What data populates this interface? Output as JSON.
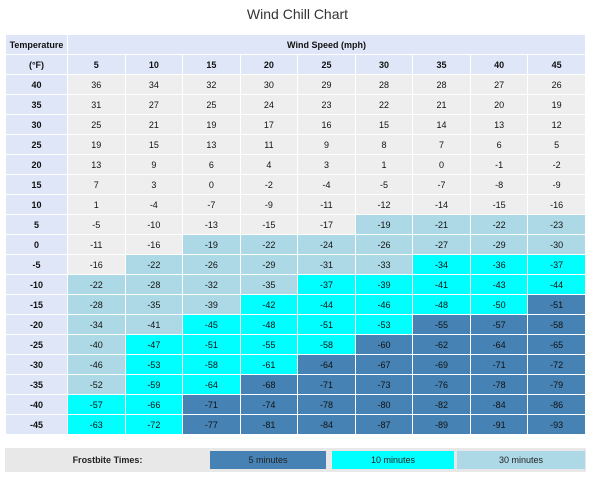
{
  "title": "Wind Chill Chart",
  "header": {
    "temp_label_1": "Temperature",
    "temp_label_2": "(°F)",
    "wind_label": "Wind Speed (mph)",
    "speeds": [
      "5",
      "10",
      "15",
      "20",
      "25",
      "30",
      "35",
      "40",
      "45"
    ]
  },
  "rows": [
    {
      "temp": "40",
      "values": [
        "36",
        "34",
        "32",
        "30",
        "29",
        "28",
        "28",
        "27",
        "26"
      ],
      "zones": [
        "none",
        "none",
        "none",
        "none",
        "none",
        "none",
        "none",
        "none",
        "none"
      ]
    },
    {
      "temp": "35",
      "values": [
        "31",
        "27",
        "25",
        "24",
        "23",
        "22",
        "21",
        "20",
        "19"
      ],
      "zones": [
        "none",
        "none",
        "none",
        "none",
        "none",
        "none",
        "none",
        "none",
        "none"
      ]
    },
    {
      "temp": "30",
      "values": [
        "25",
        "21",
        "19",
        "17",
        "16",
        "15",
        "14",
        "13",
        "12"
      ],
      "zones": [
        "none",
        "none",
        "none",
        "none",
        "none",
        "none",
        "none",
        "none",
        "none"
      ]
    },
    {
      "temp": "25",
      "values": [
        "19",
        "15",
        "13",
        "11",
        "9",
        "8",
        "7",
        "6",
        "5"
      ],
      "zones": [
        "none",
        "none",
        "none",
        "none",
        "none",
        "none",
        "none",
        "none",
        "none"
      ]
    },
    {
      "temp": "20",
      "values": [
        "13",
        "9",
        "6",
        "4",
        "3",
        "1",
        "0",
        "-1",
        "-2"
      ],
      "zones": [
        "none",
        "none",
        "none",
        "none",
        "none",
        "none",
        "none",
        "none",
        "none"
      ]
    },
    {
      "temp": "15",
      "values": [
        "7",
        "3",
        "0",
        "-2",
        "-4",
        "-5",
        "-7",
        "-8",
        "-9"
      ],
      "zones": [
        "none",
        "none",
        "none",
        "none",
        "none",
        "none",
        "none",
        "none",
        "none"
      ]
    },
    {
      "temp": "10",
      "values": [
        "1",
        "-4",
        "-7",
        "-9",
        "-11",
        "-12",
        "-14",
        "-15",
        "-16"
      ],
      "zones": [
        "none",
        "none",
        "none",
        "none",
        "none",
        "none",
        "none",
        "none",
        "none"
      ]
    },
    {
      "temp": "5",
      "values": [
        "-5",
        "-10",
        "-13",
        "-15",
        "-17",
        "-19",
        "-21",
        "-22",
        "-23"
      ],
      "zones": [
        "none",
        "none",
        "none",
        "none",
        "none",
        "30",
        "30",
        "30",
        "30"
      ]
    },
    {
      "temp": "0",
      "values": [
        "-11",
        "-16",
        "-19",
        "-22",
        "-24",
        "-26",
        "-27",
        "-29",
        "-30"
      ],
      "zones": [
        "none",
        "none",
        "30",
        "30",
        "30",
        "30",
        "30",
        "30",
        "30"
      ]
    },
    {
      "temp": "-5",
      "values": [
        "-16",
        "-22",
        "-26",
        "-29",
        "-31",
        "-33",
        "-34",
        "-36",
        "-37"
      ],
      "zones": [
        "none",
        "30",
        "30",
        "30",
        "30",
        "30",
        "10",
        "10",
        "10"
      ]
    },
    {
      "temp": "-10",
      "values": [
        "-22",
        "-28",
        "-32",
        "-35",
        "-37",
        "-39",
        "-41",
        "-43",
        "-44"
      ],
      "zones": [
        "30",
        "30",
        "30",
        "30",
        "10",
        "10",
        "10",
        "10",
        "10"
      ]
    },
    {
      "temp": "-15",
      "values": [
        "-28",
        "-35",
        "-39",
        "-42",
        "-44",
        "-46",
        "-48",
        "-50",
        "-51"
      ],
      "zones": [
        "30",
        "30",
        "30",
        "10",
        "10",
        "10",
        "10",
        "10",
        "5"
      ]
    },
    {
      "temp": "-20",
      "values": [
        "-34",
        "-41",
        "-45",
        "-48",
        "-51",
        "-53",
        "-55",
        "-57",
        "-58"
      ],
      "zones": [
        "30",
        "30",
        "10",
        "10",
        "10",
        "10",
        "5",
        "5",
        "5"
      ]
    },
    {
      "temp": "-25",
      "values": [
        "-40",
        "-47",
        "-51",
        "-55",
        "-58",
        "-60",
        "-62",
        "-64",
        "-65"
      ],
      "zones": [
        "30",
        "10",
        "10",
        "10",
        "10",
        "5",
        "5",
        "5",
        "5"
      ]
    },
    {
      "temp": "-30",
      "values": [
        "-46",
        "-53",
        "-58",
        "-61",
        "-64",
        "-67",
        "-69",
        "-71",
        "-72"
      ],
      "zones": [
        "30",
        "10",
        "10",
        "10",
        "5",
        "5",
        "5",
        "5",
        "5"
      ]
    },
    {
      "temp": "-35",
      "values": [
        "-52",
        "-59",
        "-64",
        "-68",
        "-71",
        "-73",
        "-76",
        "-78",
        "-79"
      ],
      "zones": [
        "30",
        "10",
        "10",
        "5",
        "5",
        "5",
        "5",
        "5",
        "5"
      ]
    },
    {
      "temp": "-40",
      "values": [
        "-57",
        "-66",
        "-71",
        "-74",
        "-78",
        "-80",
        "-82",
        "-84",
        "-86"
      ],
      "zones": [
        "10",
        "10",
        "5",
        "5",
        "5",
        "5",
        "5",
        "5",
        "5"
      ]
    },
    {
      "temp": "-45",
      "values": [
        "-63",
        "-72",
        "-77",
        "-81",
        "-84",
        "-87",
        "-89",
        "-91",
        "-93"
      ],
      "zones": [
        "10",
        "10",
        "5",
        "5",
        "5",
        "5",
        "5",
        "5",
        "5"
      ]
    }
  ],
  "legend": {
    "label": "Frostbite Times:",
    "five": "5 minutes",
    "ten": "10 minutes",
    "thirty": "30 minutes"
  },
  "colors": {
    "five_min": "#4682b4",
    "ten_min": "#00ffff",
    "thirty_min": "#add8e6",
    "none": "#eeeeee",
    "header": "#dfe6f7"
  }
}
